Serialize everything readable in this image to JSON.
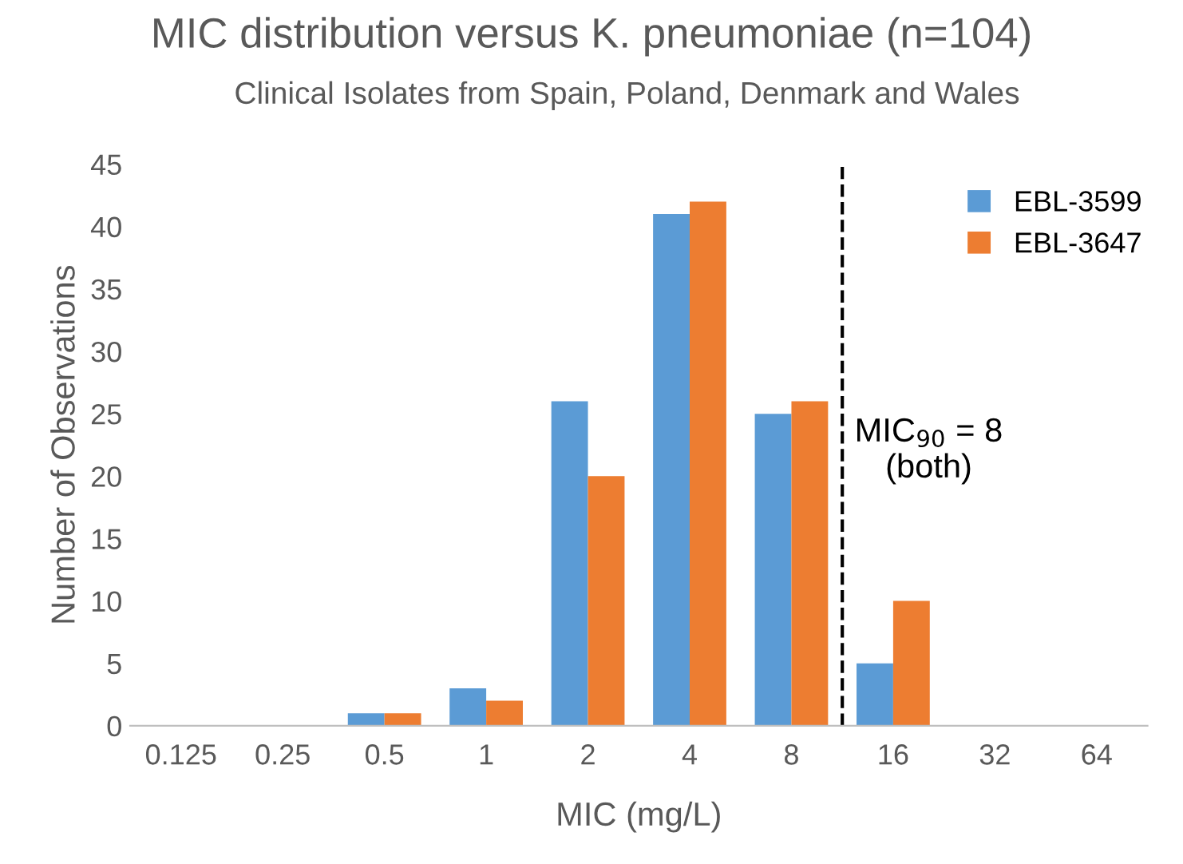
{
  "chart_data": {
    "type": "bar",
    "title": "MIC distribution versus K. pneumoniae (n=104)",
    "subtitle": "Clinical Isolates from Spain, Poland, Denmark and Wales",
    "xlabel": "MIC (mg/L)",
    "ylabel": "Number of Observations",
    "categories": [
      "0.125",
      "0.25",
      "0.5",
      "1",
      "2",
      "4",
      "8",
      "16",
      "32",
      "64"
    ],
    "series": [
      {
        "name": "EBL-3599",
        "color": "#5b9bd5",
        "values": [
          0,
          0,
          1,
          3,
          26,
          41,
          25,
          5,
          0,
          0
        ]
      },
      {
        "name": "EBL-3647",
        "color": "#ed7d31",
        "values": [
          0,
          0,
          1,
          2,
          20,
          42,
          26,
          10,
          0,
          0
        ]
      }
    ],
    "ylim": [
      0,
      45
    ],
    "yticks": [
      0,
      5,
      10,
      15,
      20,
      25,
      30,
      35,
      40,
      45
    ],
    "annotations": [
      {
        "text": "MIC$_{90}$ = 8\n(both)",
        "x": "8"
      }
    ],
    "grid": false,
    "legend": "top right"
  }
}
